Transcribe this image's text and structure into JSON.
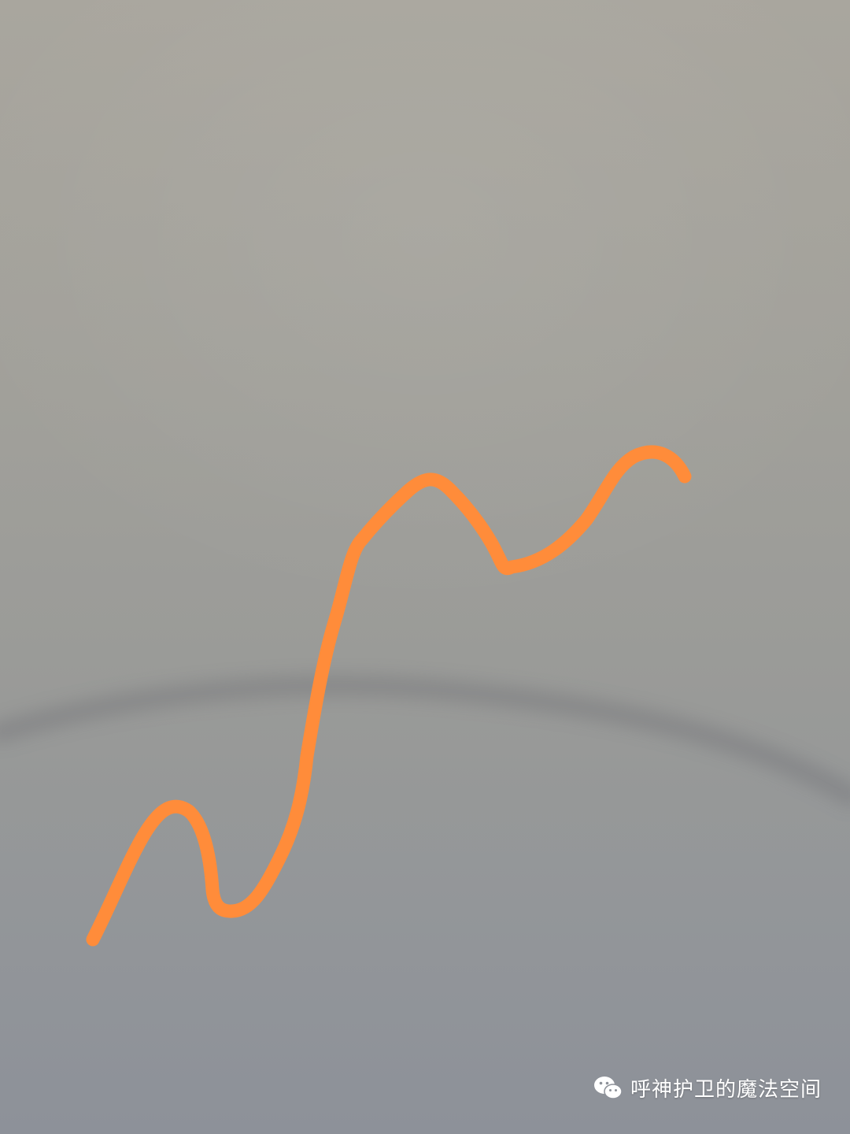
{
  "scene": {
    "stroke_color": "#ff8c3a",
    "background_top": "#a9a69e",
    "background_bottom": "#8d9199"
  },
  "watermark": {
    "icon": "wechat-icon",
    "text": "呼神护卫的魔法空间"
  }
}
